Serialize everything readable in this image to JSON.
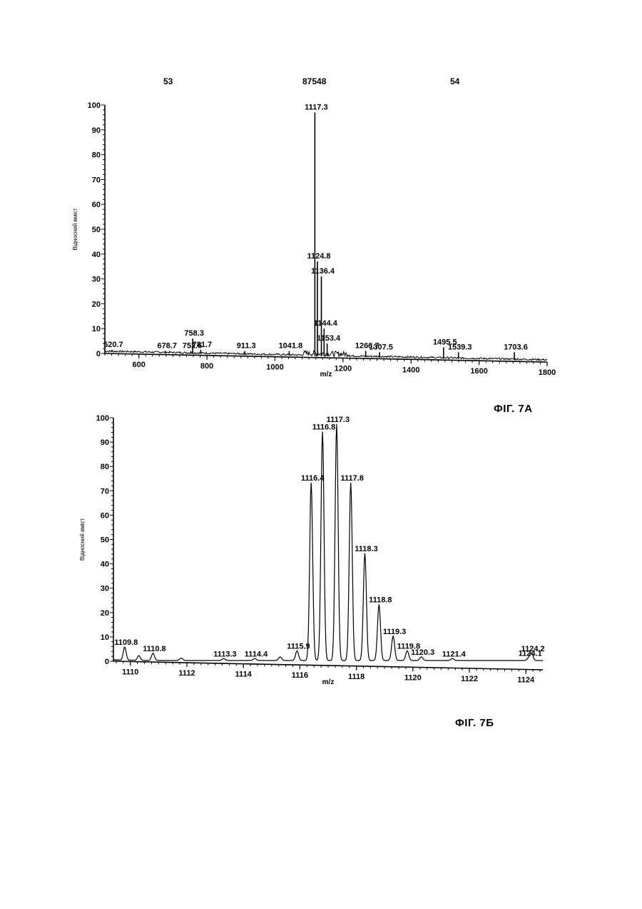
{
  "header": {
    "left": "53",
    "center": "87548",
    "right": "54"
  },
  "chart_data": [
    {
      "type": "line",
      "figure_label": "ФІГ. 7А",
      "xlabel": "m/z",
      "ylabel": "Відносний вміст",
      "xlim": [
        500,
        1800
      ],
      "ylim": [
        0,
        100
      ],
      "x_ticks": [
        600,
        800,
        1000,
        1200,
        1400,
        1600,
        1800
      ],
      "y_ticks": [
        0,
        10,
        20,
        30,
        40,
        50,
        60,
        70,
        80,
        90,
        100
      ],
      "peaks": [
        {
          "x": 520.7,
          "y": 1.5,
          "label": "520.7"
        },
        {
          "x": 678.7,
          "y": 1.0,
          "label": "678.7"
        },
        {
          "x": 752.6,
          "y": 1.0,
          "label": "752.6"
        },
        {
          "x": 758.3,
          "y": 6.0,
          "label": "758.3"
        },
        {
          "x": 781.7,
          "y": 1.5,
          "label": "781.7"
        },
        {
          "x": 911.3,
          "y": 1.0,
          "label": "911.3"
        },
        {
          "x": 1041.8,
          "y": 1.0,
          "label": "1041.8"
        },
        {
          "x": 1117.3,
          "y": 97,
          "label": "1117.3"
        },
        {
          "x": 1124.8,
          "y": 37,
          "label": "1124.8"
        },
        {
          "x": 1136.4,
          "y": 31,
          "label": "1136.4"
        },
        {
          "x": 1144.4,
          "y": 10,
          "label": "1144.4"
        },
        {
          "x": 1153.4,
          "y": 4,
          "label": "1153.4"
        },
        {
          "x": 1266.7,
          "y": 1.0,
          "label": "1266.7"
        },
        {
          "x": 1307.5,
          "y": 0.5,
          "label": "1307.5"
        },
        {
          "x": 1495.5,
          "y": 2.5,
          "label": "1495.5"
        },
        {
          "x": 1539.3,
          "y": 0.5,
          "label": "1539.3"
        },
        {
          "x": 1703.6,
          "y": 0.5,
          "label": "1703.6"
        }
      ]
    },
    {
      "type": "line",
      "figure_label": "ФІГ. 7Б",
      "xlabel": "m/z",
      "ylabel": "Відносний вміст",
      "xlim": [
        1109.4,
        1124.6
      ],
      "ylim": [
        0,
        100
      ],
      "x_ticks": [
        1110,
        1112,
        1114,
        1116,
        1118,
        1120,
        1122,
        1124
      ],
      "y_ticks": [
        0,
        10,
        20,
        30,
        40,
        50,
        60,
        70,
        80,
        90,
        100
      ],
      "peaks": [
        {
          "x": 1109.8,
          "y": 5.5,
          "label": "1109.8"
        },
        {
          "x": 1110.3,
          "y": 2,
          "label": ""
        },
        {
          "x": 1110.8,
          "y": 3,
          "label": "1110.8"
        },
        {
          "x": 1111.8,
          "y": 1,
          "label": ""
        },
        {
          "x": 1113.3,
          "y": 0.8,
          "label": "1113.3"
        },
        {
          "x": 1114.4,
          "y": 0.8,
          "label": "1114.4"
        },
        {
          "x": 1115.3,
          "y": 1.5,
          "label": ""
        },
        {
          "x": 1115.9,
          "y": 4,
          "label": "1115.9"
        },
        {
          "x": 1116.4,
          "y": 73,
          "label": "1116.4"
        },
        {
          "x": 1116.8,
          "y": 94,
          "label": "1116.8"
        },
        {
          "x": 1117.3,
          "y": 97,
          "label": "1117.3"
        },
        {
          "x": 1117.8,
          "y": 73,
          "label": "1117.8"
        },
        {
          "x": 1118.3,
          "y": 44,
          "label": "1118.3"
        },
        {
          "x": 1118.8,
          "y": 23,
          "label": "1118.8"
        },
        {
          "x": 1119.3,
          "y": 10,
          "label": "1119.3"
        },
        {
          "x": 1119.8,
          "y": 4,
          "label": "1119.8"
        },
        {
          "x": 1120.3,
          "y": 1.5,
          "label": "1120.3"
        },
        {
          "x": 1121.4,
          "y": 0.8,
          "label": "1121.4"
        },
        {
          "x": 1124.1,
          "y": 1,
          "label": "1124.1"
        },
        {
          "x": 1124.2,
          "y": 3,
          "label": "1124.2"
        }
      ]
    }
  ]
}
